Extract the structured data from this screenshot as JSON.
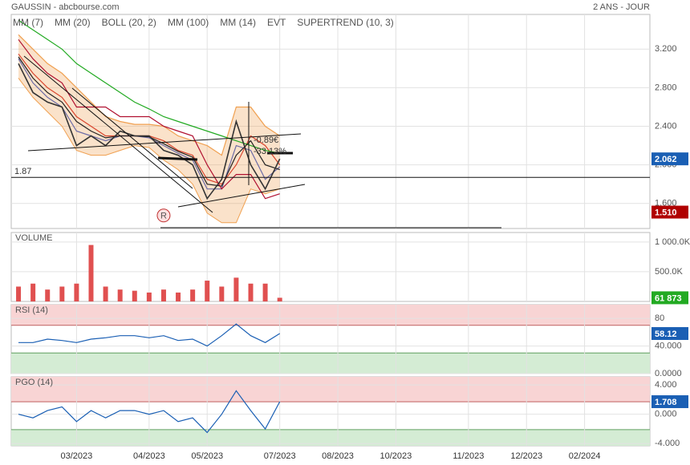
{
  "header": {
    "source": "GAUSSIN - abcbourse.com",
    "period": "2 ANS - JOUR"
  },
  "chart_data": [
    {
      "type": "line",
      "x": [
        0,
        1,
        2,
        3,
        4,
        5,
        6,
        7,
        8,
        9,
        10,
        11,
        12,
        13,
        14,
        15,
        16,
        17,
        18
      ],
      "xlim": [
        -0.5,
        43.5
      ],
      "xticks": [
        {
          "value": 4,
          "label": "03/2023"
        },
        {
          "value": 9,
          "label": "04/2023"
        },
        {
          "value": 13,
          "label": "05/2023"
        },
        {
          "value": 18,
          "label": "07/2023"
        },
        {
          "value": 22,
          "label": "08/2023"
        },
        {
          "value": 26,
          "label": "10/2023"
        },
        {
          "value": 31,
          "label": "11/2023"
        },
        {
          "value": 35,
          "label": "12/2023"
        },
        {
          "value": 39,
          "label": "02/2024"
        }
      ],
      "values": [
        3.05,
        2.75,
        2.65,
        2.6,
        2.2,
        2.3,
        2.2,
        2.35,
        2.3,
        2.3,
        2.15,
        2.1,
        2.0,
        1.65,
        1.85,
        2.45,
        2.0,
        1.75,
        2.062
      ],
      "color": "#333333",
      "ylim": [
        1.34,
        3.56
      ],
      "yticks": [
        {
          "value": 1.6,
          "label": "1.600"
        },
        {
          "value": 2.0,
          "label": "2.000"
        },
        {
          "value": 2.4,
          "label": "2.400"
        },
        {
          "value": 2.8,
          "label": "2.800"
        },
        {
          "value": 3.2,
          "label": "3.200"
        }
      ],
      "grid": true,
      "series": [
        {
          "name": "MM (7)",
          "color": "#3355cc",
          "values": [
            3.1,
            2.85,
            2.7,
            2.6,
            2.35,
            2.3,
            2.25,
            2.3,
            2.3,
            2.28,
            2.2,
            2.12,
            2.05,
            1.75,
            1.75,
            2.2,
            2.15,
            1.85,
            1.98
          ]
        },
        {
          "name": "MM (20)",
          "color": "#d02020",
          "values": [
            3.15,
            2.95,
            2.8,
            2.7,
            2.5,
            2.4,
            2.3,
            2.3,
            2.3,
            2.3,
            2.25,
            2.15,
            2.1,
            1.85,
            1.8,
            2.0,
            2.3,
            2.2,
            2.0
          ]
        },
        {
          "name": "BOLL (20, 2)",
          "color": "#f0a050",
          "values": [
            3.35,
            3.2,
            3.05,
            2.95,
            2.8,
            2.65,
            2.5,
            2.45,
            2.42,
            2.42,
            2.4,
            2.3,
            2.25,
            2.2,
            2.1,
            2.6,
            2.6,
            2.4,
            2.3
          ],
          "lower": [
            2.9,
            2.7,
            2.55,
            2.4,
            2.15,
            2.1,
            2.1,
            2.15,
            2.2,
            2.18,
            2.05,
            1.95,
            1.8,
            1.5,
            1.4,
            1.4,
            1.75,
            1.7,
            1.75
          ]
        },
        {
          "name": "MM (100)",
          "color": "#22aa22",
          "values": [
            3.5,
            3.4,
            3.3,
            3.2,
            3.05,
            2.95,
            2.85,
            2.75,
            2.65,
            2.58,
            2.5,
            2.45,
            2.4,
            2.35,
            2.3,
            2.25,
            2.2,
            2.15,
            2.12
          ]
        },
        {
          "name": "MM (14)",
          "color": "#222222",
          "values": [
            3.12,
            2.9,
            2.75,
            2.65,
            2.45,
            2.35,
            2.28,
            2.3,
            2.3,
            2.29,
            2.22,
            2.14,
            2.08,
            1.8,
            1.78,
            2.1,
            2.25,
            2.0,
            1.95
          ]
        },
        {
          "name": "EVT",
          "color": "#222222",
          "values": [
            null,
            null,
            null,
            null,
            null,
            null,
            null,
            null,
            null,
            null,
            1.475,
            null,
            null,
            null,
            null,
            null,
            null,
            null,
            null
          ],
          "value_labels": [
            null,
            null,
            null,
            null,
            null,
            null,
            null,
            null,
            null,
            null,
            "R",
            null,
            null,
            null,
            null,
            null,
            null,
            null,
            null
          ]
        },
        {
          "name": "SUPERTREND (10, 3)",
          "color": "#b01030",
          "values": [
            3.3,
            3.1,
            2.95,
            2.85,
            2.6,
            2.6,
            2.6,
            2.5,
            2.5,
            2.5,
            2.4,
            2.35,
            2.3,
            2.0,
            1.75,
            1.9,
            1.9,
            1.65,
            1.7
          ]
        }
      ],
      "hline": 1.87,
      "marker": {
        "value": 1.51,
        "label": "1.510",
        "color": "#b00000"
      },
      "annotations": [
        "-0.89€",
        "-33.13%"
      ]
    },
    {
      "type": "bar",
      "title": "VOLUME",
      "title_color": "#22aa22",
      "color": "#e05050",
      "values": [
        250000,
        300000,
        200000,
        250000,
        300000,
        950000,
        250000,
        200000,
        180000,
        150000,
        200000,
        150000,
        200000,
        350000,
        250000,
        400000,
        300000,
        300000,
        61873
      ],
      "value_labels": [
        null,
        null,
        null,
        null,
        null,
        null,
        null,
        null,
        null,
        null,
        null,
        null,
        null,
        null,
        null,
        null,
        null,
        null,
        "61 873"
      ],
      "badge_color": "#22aa22",
      "ylim": [
        0,
        1160000
      ],
      "yticks": [
        {
          "value": 500000,
          "label": "500.0K"
        },
        {
          "value": 1000000,
          "label": "1 000.0K"
        }
      ],
      "grid": true
    },
    {
      "type": "line",
      "title": "RSI (14)",
      "title_color": "#3355cc",
      "color": "#1a5fb4",
      "values": [
        45,
        45,
        50,
        48,
        45,
        50,
        52,
        55,
        55,
        52,
        55,
        48,
        50,
        40,
        55,
        72,
        55,
        45,
        58.12
      ],
      "badge_color": "#1a5fb4",
      "ylim": [
        0,
        100
      ],
      "yticks": [
        {
          "value": 0,
          "label": "0.0000"
        },
        {
          "value": 40,
          "label": "40.000"
        },
        80
      ],
      "upper_zone": 70,
      "lower_zone": 30,
      "grid": true
    },
    {
      "type": "line",
      "title": "PGO (14)",
      "title_color": "#3355cc",
      "color": "#1a5fb4",
      "values": [
        0,
        -0.5,
        0.5,
        1,
        -1,
        0.5,
        -0.5,
        0.5,
        0.5,
        0,
        0.5,
        -1,
        -0.5,
        -2.5,
        0,
        3.2,
        0.5,
        -2,
        1.708
      ],
      "badge_color": "#1a5fb4",
      "ylim": [
        -4.3,
        5.1
      ],
      "yticks": [
        {
          "value": -4,
          "label": "-4.000"
        },
        {
          "value": 0,
          "label": "0.000"
        },
        {
          "value": 4,
          "label": "4.000"
        }
      ],
      "upper_zone": 1.7,
      "lower_zone": -2.1,
      "grid": true
    }
  ]
}
